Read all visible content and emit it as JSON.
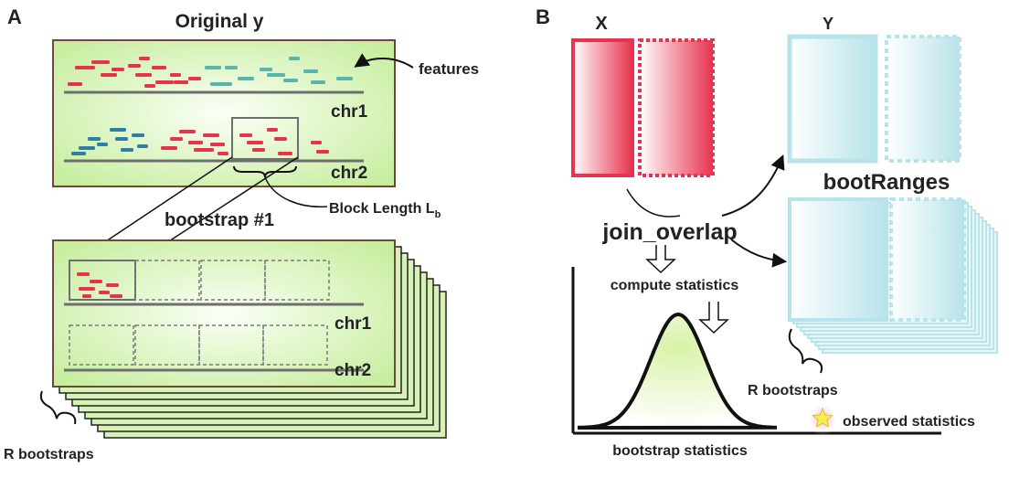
{
  "panel_a": {
    "letter": "A",
    "title": "Original y",
    "features_label": "features",
    "chr1_label": "chr1",
    "chr2_label": "chr2",
    "block_length_label": "Block Length L",
    "block_length_subscript": "b",
    "bootstrap_label": "bootstrap #1",
    "r_bootstraps_label": "R bootstraps"
  },
  "panel_b": {
    "letter": "B",
    "x_label": "X",
    "y_label": "Y",
    "bootranges_label": "bootRanges",
    "join_label": "join_overlap",
    "compute_label": "compute statistics",
    "r_bootstraps_label": "R bootstraps",
    "observed_label": "observed statistics",
    "axis_label": "bootstrap statistics"
  },
  "colors": {
    "red": "#e8334f",
    "teal": "#58b6ad",
    "blue": "#2f7fa3",
    "light_blue": "#b7e3ea",
    "green_panel": "#d6f2b5",
    "panel_border": "#6b4a3a",
    "chromosome_line": "#6e6e6e"
  }
}
